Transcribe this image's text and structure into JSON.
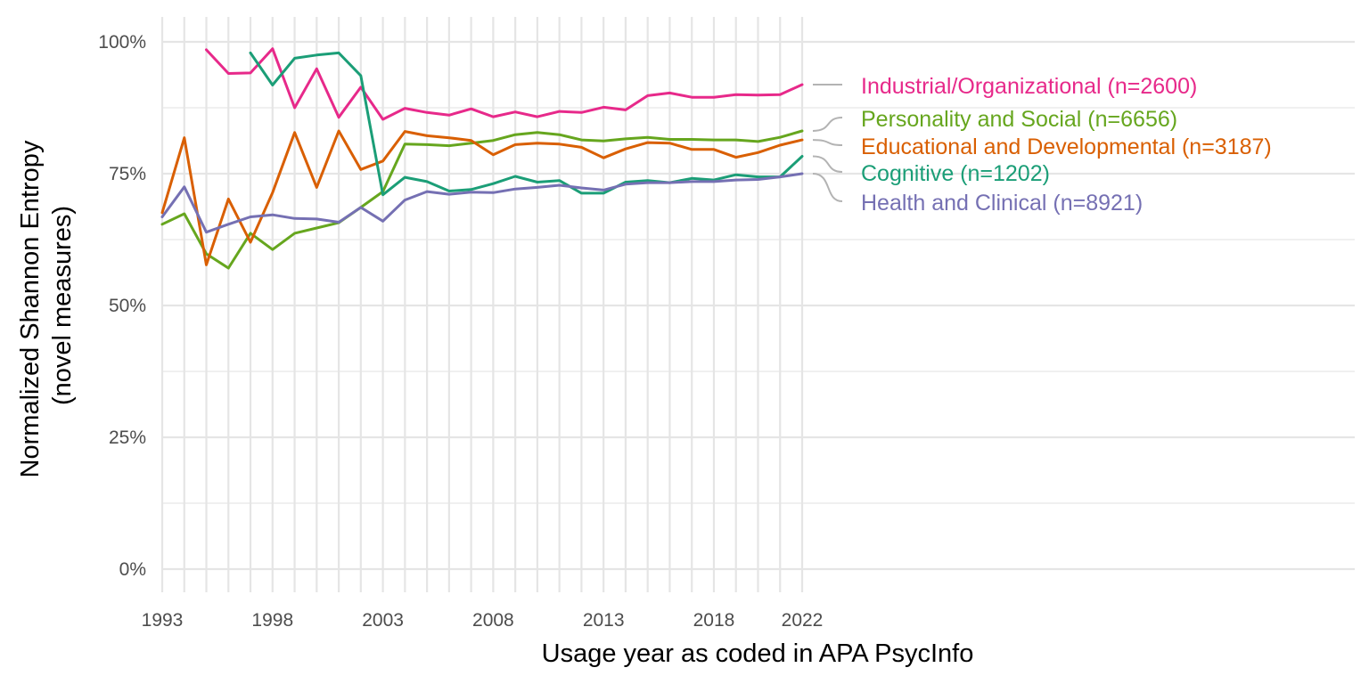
{
  "chart_data": {
    "type": "line",
    "xlabel": "Usage year as coded in APA PsycInfo",
    "ylabel_lines": [
      "Normalized Shannon Entropy",
      "(novel measures)"
    ],
    "xlim": [
      1993,
      2022
    ],
    "ylim": [
      0,
      1
    ],
    "x_ticks": [
      1993,
      1998,
      2003,
      2008,
      2013,
      2018,
      2022
    ],
    "y_ticks": [
      0,
      0.25,
      0.5,
      0.75,
      1.0
    ],
    "y_tick_labels": [
      "0%",
      "25%",
      "50%",
      "75%",
      "100%"
    ],
    "grid": true,
    "legend": "direct labels at right end of lines",
    "series": [
      {
        "name": "Industrial/Organizational (n=2600)",
        "color": "#e7298a",
        "x": [
          1995,
          1996,
          1997,
          1998,
          1999,
          2000,
          2001,
          2002,
          2003,
          2004,
          2005,
          2006,
          2007,
          2008,
          2009,
          2010,
          2011,
          2012,
          2013,
          2014,
          2015,
          2016,
          2017,
          2018,
          2019,
          2020,
          2021,
          2022
        ],
        "values": [
          0.985,
          0.94,
          0.941,
          0.987,
          0.875,
          0.949,
          0.857,
          0.914,
          0.853,
          0.874,
          0.866,
          0.861,
          0.873,
          0.858,
          0.867,
          0.858,
          0.868,
          0.866,
          0.876,
          0.871,
          0.898,
          0.903,
          0.895,
          0.895,
          0.9,
          0.899,
          0.9,
          0.919
        ]
      },
      {
        "name": "Personality and Social (n=6656)",
        "color": "#66a61e",
        "x": [
          1993,
          1994,
          1995,
          1996,
          1997,
          1998,
          1999,
          2000,
          2001,
          2002,
          2003,
          2004,
          2005,
          2006,
          2007,
          2008,
          2009,
          2010,
          2011,
          2012,
          2013,
          2014,
          2015,
          2016,
          2017,
          2018,
          2019,
          2020,
          2021,
          2022
        ],
        "values": [
          0.654,
          0.674,
          0.598,
          0.571,
          0.637,
          0.606,
          0.637,
          0.647,
          0.657,
          0.686,
          0.716,
          0.806,
          0.805,
          0.803,
          0.808,
          0.813,
          0.824,
          0.828,
          0.824,
          0.814,
          0.812,
          0.816,
          0.819,
          0.815,
          0.815,
          0.814,
          0.814,
          0.811,
          0.819,
          0.831
        ]
      },
      {
        "name": "Educational and Developmental (n=3187)",
        "color": "#d95f02",
        "x": [
          1993,
          1994,
          1995,
          1996,
          1997,
          1998,
          1999,
          2000,
          2001,
          2002,
          2003,
          2004,
          2005,
          2006,
          2007,
          2008,
          2009,
          2010,
          2011,
          2012,
          2013,
          2014,
          2015,
          2016,
          2017,
          2018,
          2019,
          2020,
          2021,
          2022
        ],
        "values": [
          0.676,
          0.818,
          0.577,
          0.702,
          0.62,
          0.714,
          0.828,
          0.724,
          0.831,
          0.758,
          0.774,
          0.83,
          0.822,
          0.818,
          0.813,
          0.786,
          0.805,
          0.808,
          0.806,
          0.8,
          0.78,
          0.797,
          0.809,
          0.808,
          0.796,
          0.796,
          0.781,
          0.79,
          0.804,
          0.814
        ]
      },
      {
        "name": "Cognitive (n=1202)",
        "color": "#1b9e77",
        "x": [
          1997,
          1998,
          1999,
          2000,
          2001,
          2002,
          2003,
          2004,
          2005,
          2006,
          2007,
          2008,
          2009,
          2010,
          2011,
          2012,
          2013,
          2014,
          2015,
          2016,
          2017,
          2018,
          2019,
          2020,
          2021,
          2022
        ],
        "values": [
          0.979,
          0.918,
          0.969,
          0.975,
          0.979,
          0.936,
          0.71,
          0.743,
          0.735,
          0.717,
          0.72,
          0.731,
          0.745,
          0.734,
          0.737,
          0.713,
          0.713,
          0.734,
          0.737,
          0.733,
          0.741,
          0.738,
          0.748,
          0.744,
          0.744,
          0.783
        ]
      },
      {
        "name": "Health and Clinical (n=8921)",
        "color": "#7570b3",
        "x": [
          1993,
          1994,
          1995,
          1996,
          1997,
          1998,
          1999,
          2000,
          2001,
          2002,
          2003,
          2004,
          2005,
          2006,
          2007,
          2008,
          2009,
          2010,
          2011,
          2012,
          2013,
          2014,
          2015,
          2016,
          2017,
          2018,
          2019,
          2020,
          2021,
          2022
        ],
        "values": [
          0.668,
          0.725,
          0.639,
          0.654,
          0.668,
          0.672,
          0.665,
          0.664,
          0.658,
          0.686,
          0.66,
          0.7,
          0.716,
          0.711,
          0.715,
          0.714,
          0.721,
          0.724,
          0.728,
          0.723,
          0.719,
          0.73,
          0.733,
          0.733,
          0.735,
          0.735,
          0.738,
          0.739,
          0.744,
          0.75
        ]
      }
    ]
  }
}
